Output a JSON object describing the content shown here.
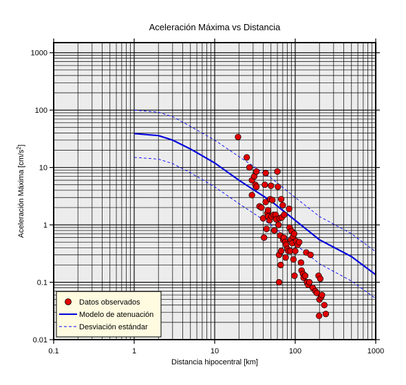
{
  "chart_data": {
    "type": "scatter",
    "title": "Aceleración Máxima vs Distancia",
    "xlabel": "Distancia hipocentral [km]",
    "ylabel_main": "Aceleración Máxima [cm/s",
    "ylabel_sup": "2",
    "ylabel_end": "]",
    "x_scale": "log",
    "y_scale": "log",
    "xlim": [
      0.1,
      1000
    ],
    "ylim": [
      0.01,
      1500
    ],
    "x_ticks": [
      0.1,
      1,
      10,
      100,
      1000
    ],
    "x_tick_labels": [
      "0.1",
      "1",
      "10",
      "100",
      "1000"
    ],
    "y_ticks": [
      0.01,
      0.1,
      1,
      10,
      100,
      1000
    ],
    "y_tick_labels": [
      "0.01",
      "0.1",
      "1",
      "10",
      "100",
      "1000"
    ],
    "grid": true,
    "legend_position": "bottom-left",
    "colors": {
      "plot_bg": "#ececec",
      "grid": "#000000",
      "points": "#e00000",
      "model": "#0000dd",
      "deviation": "#0000ff",
      "legend_bg": "#fffbe0"
    },
    "series": [
      {
        "name": "Datos observados",
        "kind": "points",
        "points": [
          [
            19.5,
            34
          ],
          [
            25,
            15
          ],
          [
            27,
            10
          ],
          [
            29,
            6
          ],
          [
            29,
            3.3
          ],
          [
            31,
            7
          ],
          [
            32,
            5
          ],
          [
            33,
            8.5
          ],
          [
            33,
            4.6
          ],
          [
            36,
            2.1
          ],
          [
            38,
            2.0
          ],
          [
            40,
            1.3
          ],
          [
            41,
            0.6
          ],
          [
            42,
            5
          ],
          [
            43,
            8
          ],
          [
            43,
            2.5
          ],
          [
            44,
            0.85
          ],
          [
            45,
            1.6
          ],
          [
            46,
            1.8
          ],
          [
            46,
            1.4
          ],
          [
            48,
            1.2
          ],
          [
            49,
            2.8
          ],
          [
            50,
            4.8
          ],
          [
            51,
            1.4
          ],
          [
            52,
            2.7
          ],
          [
            54,
            1.5
          ],
          [
            55,
            0.8
          ],
          [
            57,
            1.5
          ],
          [
            58,
            1.25
          ],
          [
            60,
            8.5
          ],
          [
            61,
            4.6
          ],
          [
            62,
            1.0
          ],
          [
            63,
            0.3
          ],
          [
            63,
            0.1
          ],
          [
            64,
            1.3
          ],
          [
            65,
            0.65
          ],
          [
            66,
            0.2
          ],
          [
            67,
            2.8
          ],
          [
            67,
            0.35
          ],
          [
            68,
            1.35
          ],
          [
            70,
            2.2
          ],
          [
            71,
            0.55
          ],
          [
            72,
            0.6
          ],
          [
            73,
            1.5
          ],
          [
            75,
            0.5
          ],
          [
            76,
            0.27
          ],
          [
            77,
            0.45
          ],
          [
            80,
            0.38
          ],
          [
            82,
            0.35
          ],
          [
            84,
            1.9
          ],
          [
            85,
            0.9
          ],
          [
            87,
            0.35
          ],
          [
            88,
            0.55
          ],
          [
            90,
            0.78
          ],
          [
            92,
            0.48
          ],
          [
            94,
            0.62
          ],
          [
            95,
            0.25
          ],
          [
            97,
            0.7
          ],
          [
            98,
            0.13
          ],
          [
            100,
            0.35
          ],
          [
            103,
            0.52
          ],
          [
            107,
            0.45
          ],
          [
            112,
            0.5
          ],
          [
            118,
            0.22
          ],
          [
            120,
            0.16
          ],
          [
            125,
            0.14
          ],
          [
            127,
            0.12
          ],
          [
            133,
            0.13
          ],
          [
            137,
            0.33
          ],
          [
            140,
            0.1
          ],
          [
            145,
            0.09
          ],
          [
            150,
            0.1
          ],
          [
            155,
            0.3
          ],
          [
            165,
            0.08
          ],
          [
            178,
            0.07
          ],
          [
            186,
            0.065
          ],
          [
            195,
            0.13
          ],
          [
            200,
            0.05
          ],
          [
            205,
            0.115
          ],
          [
            210,
            0.055
          ],
          [
            215,
            0.06
          ],
          [
            230,
            0.04
          ],
          [
            240,
            0.028
          ],
          [
            198,
            0.026
          ]
        ]
      },
      {
        "name": "Modelo de atenuación",
        "kind": "line",
        "x": [
          1,
          2,
          3,
          5,
          10,
          20,
          50,
          100,
          200,
          500,
          1000
        ],
        "y": [
          39,
          36,
          30,
          21,
          12,
          6.0,
          2.6,
          1.2,
          0.55,
          0.28,
          0.135
        ]
      },
      {
        "name": "Desviación estándar",
        "kind": "dashed",
        "upper": {
          "x": [
            1,
            2,
            3,
            5,
            10,
            20,
            50,
            100,
            200,
            500,
            1000
          ],
          "y": [
            100,
            92,
            77,
            52,
            30,
            15.5,
            6.6,
            3.0,
            1.4,
            0.7,
            0.34
          ]
        },
        "lower": {
          "x": [
            1,
            2,
            3,
            5,
            10,
            20,
            50,
            100,
            200,
            500,
            1000
          ],
          "y": [
            15,
            14,
            11.7,
            8.1,
            4.6,
            2.35,
            1.0,
            0.46,
            0.21,
            0.105,
            0.052
          ]
        }
      }
    ]
  }
}
